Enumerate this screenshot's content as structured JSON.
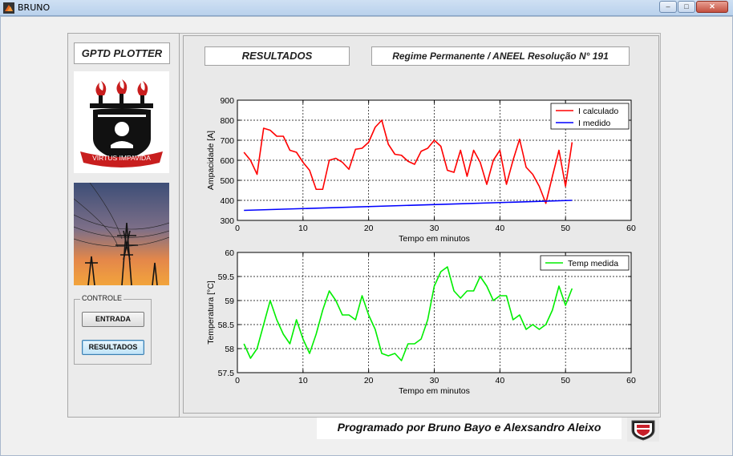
{
  "window": {
    "title": "BRUNO",
    "buttons": [
      "minimize",
      "maximize",
      "close"
    ]
  },
  "left": {
    "app_title": "GPTD PLOTTER",
    "logo_motto": "VIRTUS IMPAVIDA",
    "control_group": "CONTROLE",
    "buttons": {
      "entrada": "ENTRADA",
      "resultados": "RESULTADOS"
    }
  },
  "header": {
    "results_label": "RESULTADOS",
    "regime_label": "Regime Permanente / ANEEL Resolução N° 191"
  },
  "footer": {
    "credits": "Programado por Bruno Bayo e Alexsandro Aleixo"
  },
  "chart_data": [
    {
      "type": "line",
      "xlabel": "Tempo em minutos",
      "ylabel": "Ampacidade [A]",
      "xlim": [
        0,
        60
      ],
      "ylim": [
        300,
        900
      ],
      "xticks": [
        0,
        10,
        20,
        30,
        40,
        50,
        60
      ],
      "yticks": [
        300,
        400,
        500,
        600,
        700,
        800,
        900
      ],
      "grid": true,
      "legend": "top-right",
      "series": [
        {
          "name": "I calculado",
          "color": "#ff0000",
          "x": [
            1,
            2,
            3,
            4,
            5,
            6,
            7,
            8,
            9,
            10,
            11,
            12,
            13,
            14,
            15,
            16,
            17,
            18,
            19,
            20,
            21,
            22,
            23,
            24,
            25,
            26,
            27,
            28,
            29,
            30,
            31,
            32,
            33,
            34,
            35,
            36,
            37,
            38,
            39,
            40,
            41,
            42,
            43,
            44,
            45,
            46,
            47,
            48,
            49,
            50,
            51
          ],
          "y": [
            640,
            600,
            530,
            760,
            750,
            720,
            720,
            650,
            640,
            590,
            550,
            455,
            455,
            600,
            610,
            590,
            555,
            655,
            660,
            690,
            765,
            800,
            680,
            630,
            625,
            595,
            580,
            645,
            660,
            700,
            670,
            550,
            540,
            650,
            520,
            650,
            590,
            480,
            600,
            650,
            480,
            600,
            705,
            565,
            530,
            470,
            385,
            520,
            650,
            470,
            690
          ]
        },
        {
          "name": "I medido",
          "color": "#0000ff",
          "x": [
            1,
            51
          ],
          "y": [
            350,
            400
          ]
        }
      ]
    },
    {
      "type": "line",
      "xlabel": "Tempo em minutos",
      "ylabel": "Temperatura [°C]",
      "xlim": [
        0,
        60
      ],
      "ylim": [
        57.5,
        60
      ],
      "xticks": [
        0,
        10,
        20,
        30,
        40,
        50,
        60
      ],
      "yticks": [
        57.5,
        58,
        58.5,
        59,
        59.5,
        60
      ],
      "grid": true,
      "legend": "top-right",
      "series": [
        {
          "name": "Temp medida",
          "color": "#00ee00",
          "x": [
            1,
            2,
            3,
            4,
            5,
            6,
            7,
            8,
            9,
            10,
            11,
            12,
            13,
            14,
            15,
            16,
            17,
            18,
            19,
            20,
            21,
            22,
            23,
            24,
            25,
            26,
            27,
            28,
            29,
            30,
            31,
            32,
            33,
            34,
            35,
            36,
            37,
            38,
            39,
            40,
            41,
            42,
            43,
            44,
            45,
            46,
            47,
            48,
            49,
            50,
            51
          ],
          "y": [
            58.1,
            57.8,
            58.0,
            58.5,
            59.0,
            58.6,
            58.3,
            58.1,
            58.6,
            58.2,
            57.9,
            58.3,
            58.8,
            59.2,
            59.0,
            58.7,
            58.7,
            58.6,
            59.1,
            58.7,
            58.4,
            57.9,
            57.85,
            57.9,
            57.75,
            58.1,
            58.1,
            58.2,
            58.6,
            59.3,
            59.6,
            59.7,
            59.2,
            59.05,
            59.2,
            59.2,
            59.5,
            59.3,
            59.0,
            59.1,
            59.1,
            58.6,
            58.7,
            58.4,
            58.5,
            58.4,
            58.5,
            58.8,
            59.3,
            58.9,
            59.25
          ]
        }
      ]
    }
  ]
}
